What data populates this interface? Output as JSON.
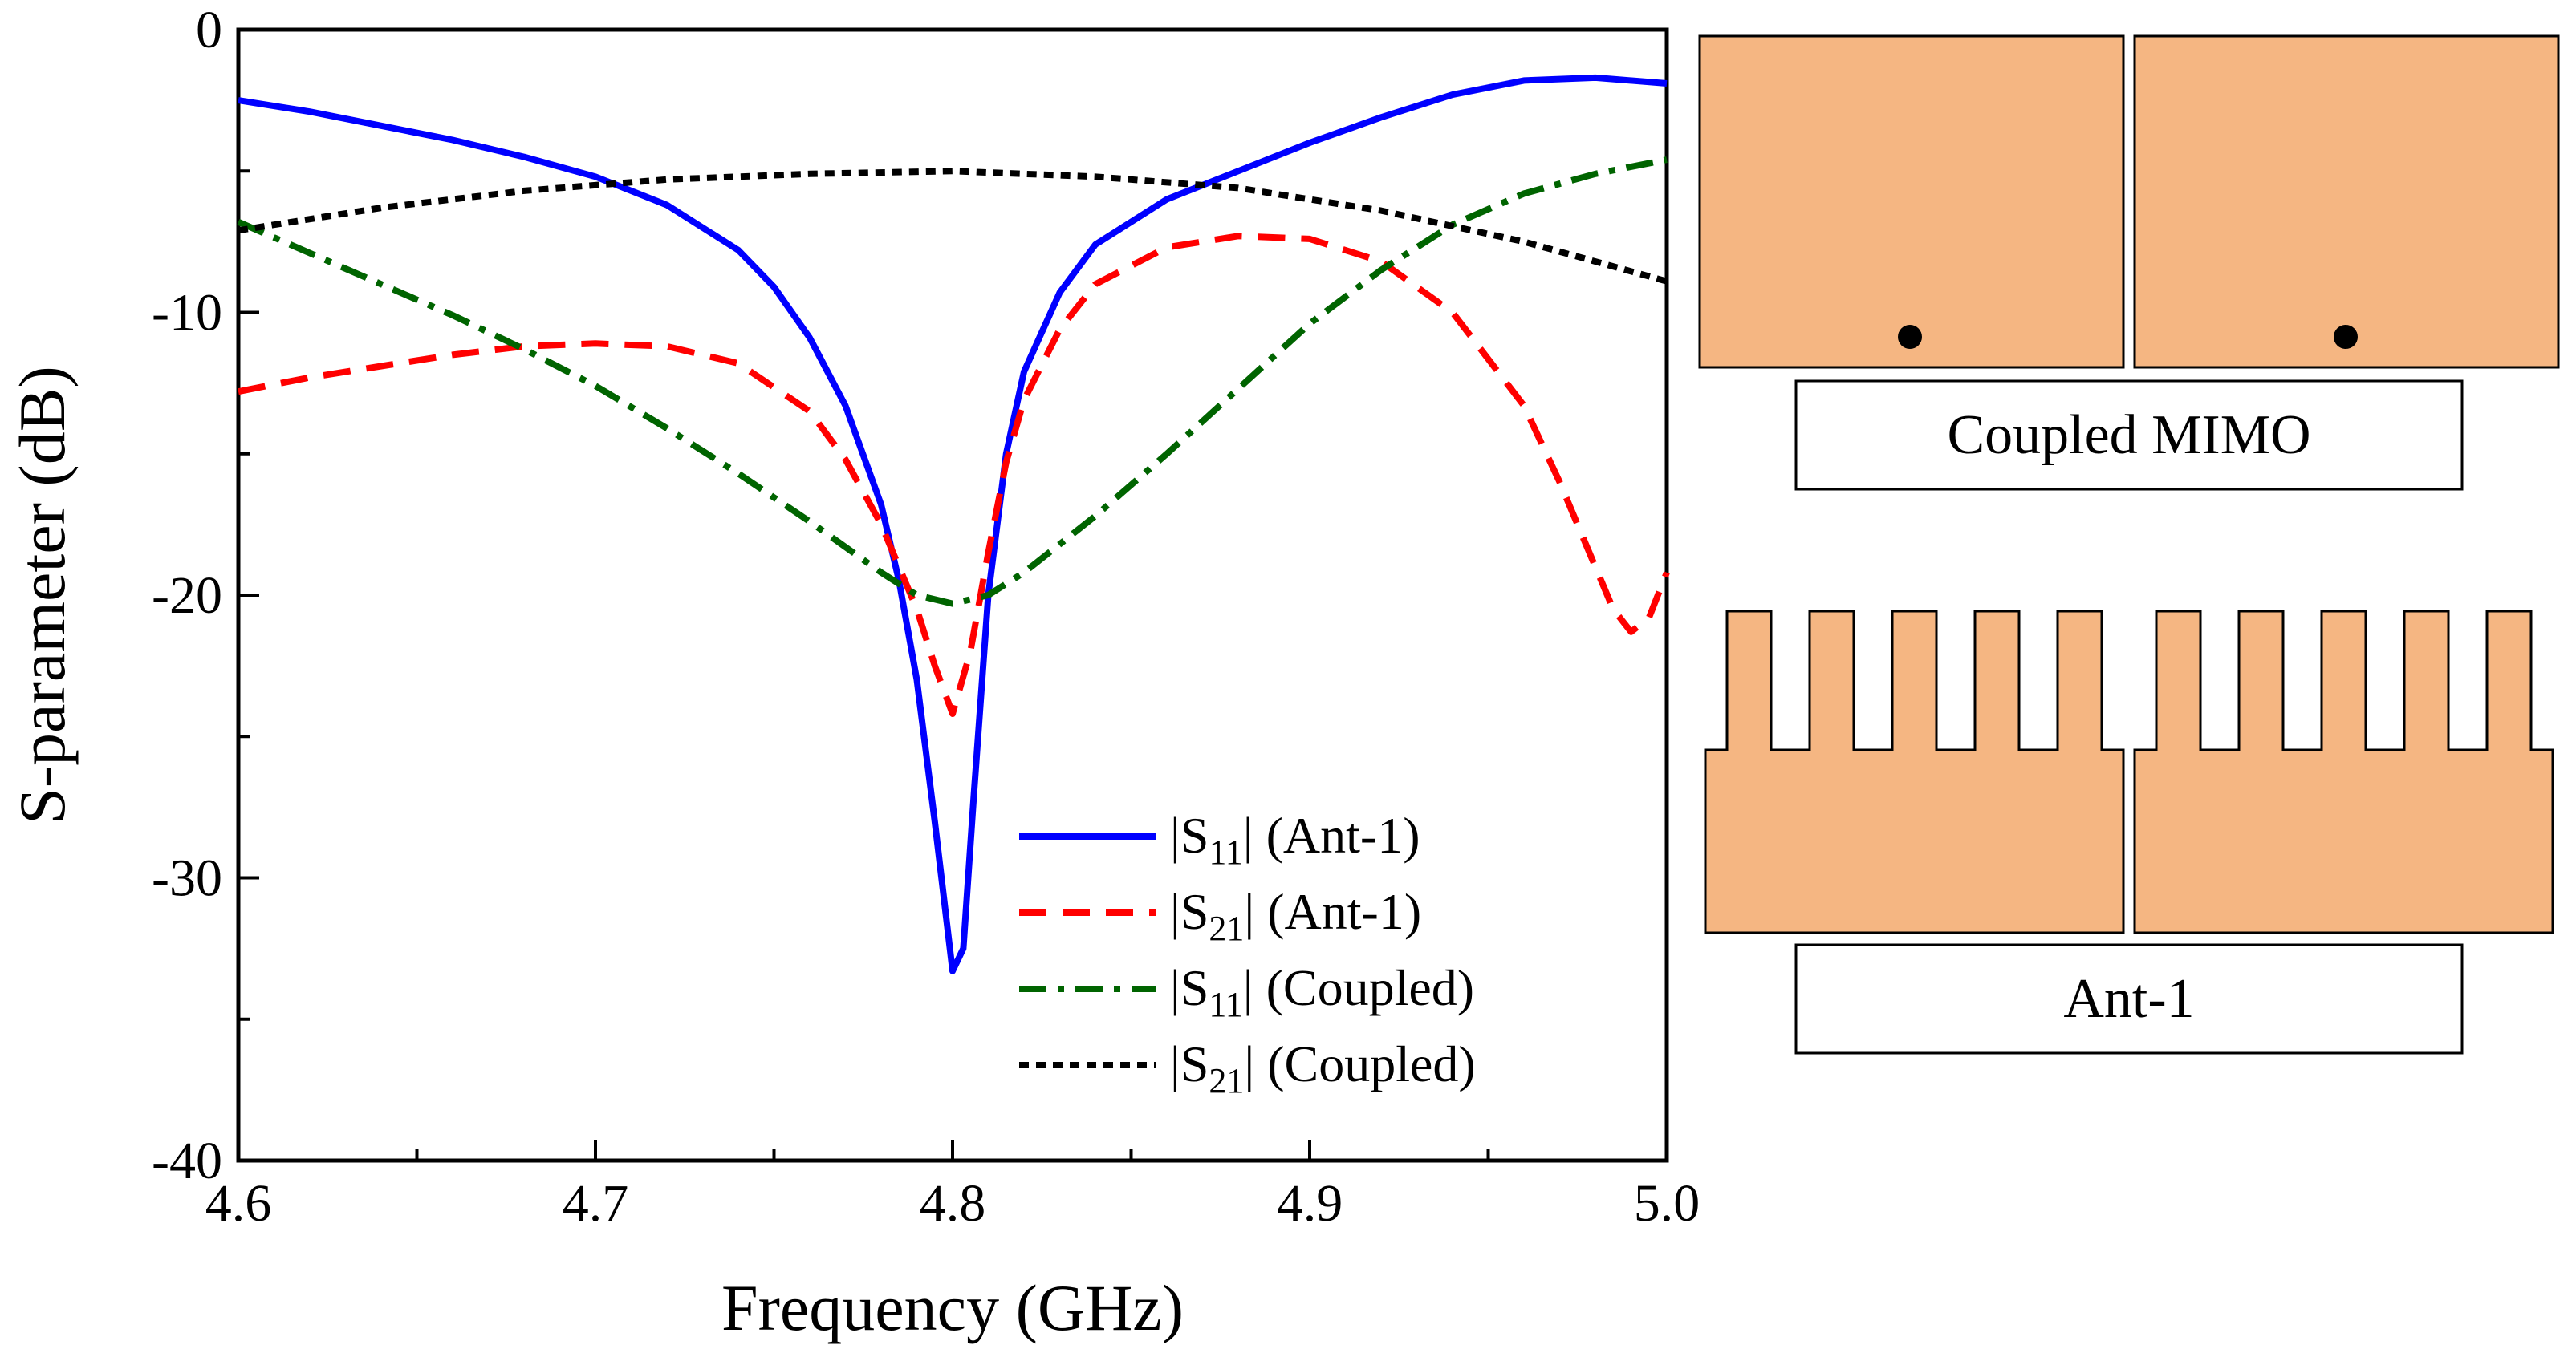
{
  "chart_data": {
    "type": "line",
    "xlabel": "Frequency (GHz)",
    "ylabel": "S-parameter (dB)",
    "xlim": [
      4.6,
      5.0
    ],
    "ylim": [
      -40,
      0
    ],
    "xticks": [
      "4.6",
      "4.7",
      "4.8",
      "4.9",
      "5.0"
    ],
    "yticks": [
      "0",
      "-10",
      "-20",
      "-30",
      "-40"
    ],
    "legend_position": "lower-right",
    "series": [
      {
        "name": "|S11| (Ant-1)",
        "legend_main": "|S",
        "legend_sub": "11",
        "legend_rest": "| (Ant-1)",
        "color": "#0000ff",
        "dash": "solid",
        "x": [
          4.6,
          4.62,
          4.64,
          4.66,
          4.68,
          4.7,
          4.72,
          4.74,
          4.75,
          4.76,
          4.77,
          4.78,
          4.785,
          4.79,
          4.795,
          4.8,
          4.803,
          4.806,
          4.81,
          4.815,
          4.82,
          4.83,
          4.84,
          4.86,
          4.88,
          4.9,
          4.92,
          4.94,
          4.96,
          4.98,
          5.0
        ],
        "y": [
          -2.5,
          -2.9,
          -3.4,
          -3.9,
          -4.5,
          -5.2,
          -6.2,
          -7.8,
          -9.1,
          -10.9,
          -13.3,
          -16.8,
          -19.5,
          -23.0,
          -28.0,
          -33.3,
          -32.5,
          -27.0,
          -20.0,
          -15.0,
          -12.1,
          -9.3,
          -7.6,
          -6.0,
          -5.0,
          -4.0,
          -3.1,
          -2.3,
          -1.8,
          -1.7,
          -1.9
        ]
      },
      {
        "name": "|S21| (Ant-1)",
        "legend_main": "|S",
        "legend_sub": "21",
        "legend_rest": "| (Ant-1)",
        "color": "#ff0000",
        "dash": "dashed",
        "x": [
          4.6,
          4.62,
          4.64,
          4.66,
          4.68,
          4.7,
          4.72,
          4.74,
          4.76,
          4.77,
          4.78,
          4.79,
          4.795,
          4.8,
          4.805,
          4.81,
          4.815,
          4.82,
          4.83,
          4.84,
          4.86,
          4.88,
          4.9,
          4.92,
          4.94,
          4.96,
          4.97,
          4.98,
          4.985,
          4.99,
          4.995,
          5.0
        ],
        "y": [
          -12.8,
          -12.3,
          -11.9,
          -11.5,
          -11.2,
          -11.1,
          -11.2,
          -11.8,
          -13.5,
          -15.2,
          -17.5,
          -20.5,
          -22.5,
          -24.2,
          -22.0,
          -18.5,
          -15.3,
          -13.1,
          -10.6,
          -9.0,
          -7.7,
          -7.3,
          -7.4,
          -8.2,
          -10.0,
          -13.3,
          -16.0,
          -19.0,
          -20.5,
          -21.3,
          -20.8,
          -19.2
        ]
      },
      {
        "name": "|S11| (Coupled)",
        "legend_main": "|S",
        "legend_sub": "11",
        "legend_rest": "| (Coupled)",
        "color": "#006400",
        "dash": "dashdot",
        "x": [
          4.6,
          4.62,
          4.64,
          4.66,
          4.68,
          4.7,
          4.72,
          4.74,
          4.76,
          4.78,
          4.79,
          4.8,
          4.81,
          4.82,
          4.84,
          4.86,
          4.88,
          4.9,
          4.92,
          4.94,
          4.96,
          4.98,
          5.0
        ],
        "y": [
          -6.8,
          -7.9,
          -9.0,
          -10.1,
          -11.3,
          -12.6,
          -14.1,
          -15.7,
          -17.4,
          -19.2,
          -20.0,
          -20.3,
          -20.0,
          -19.2,
          -17.2,
          -15.0,
          -12.7,
          -10.4,
          -8.5,
          -6.9,
          -5.8,
          -5.1,
          -4.6
        ]
      },
      {
        "name": "|S21| (Coupled)",
        "legend_main": "|S",
        "legend_sub": "21",
        "legend_rest": "| (Coupled)",
        "color": "#000000",
        "dash": "dotted",
        "x": [
          4.6,
          4.64,
          4.68,
          4.72,
          4.76,
          4.8,
          4.84,
          4.88,
          4.92,
          4.96,
          5.0
        ],
        "y": [
          -7.1,
          -6.3,
          -5.7,
          -5.3,
          -5.1,
          -5.0,
          -5.2,
          -5.6,
          -6.4,
          -7.5,
          -8.9
        ]
      }
    ]
  },
  "diagrams": {
    "coupled_label": "Coupled MIMO",
    "ant_label": "Ant-1",
    "patch_color": "#f5b682",
    "feed_color": "#000000"
  }
}
